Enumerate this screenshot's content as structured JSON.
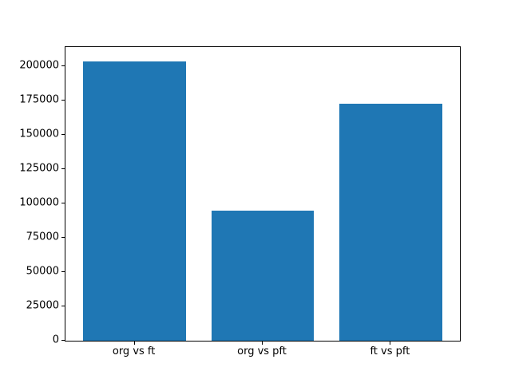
{
  "chart_data": {
    "type": "bar",
    "categories": [
      "org vs ft",
      "org vs pft",
      "ft vs pft"
    ],
    "values": [
      204000,
      95000,
      173000
    ],
    "title": "",
    "xlabel": "",
    "ylabel": "",
    "ylim": [
      0,
      214200
    ],
    "yticks": [
      0,
      25000,
      50000,
      75000,
      100000,
      125000,
      150000,
      175000,
      200000
    ],
    "bar_color": "#1f77b4",
    "axis_color": "#000000",
    "background_color": "#ffffff",
    "grid": false,
    "legend": null
  }
}
